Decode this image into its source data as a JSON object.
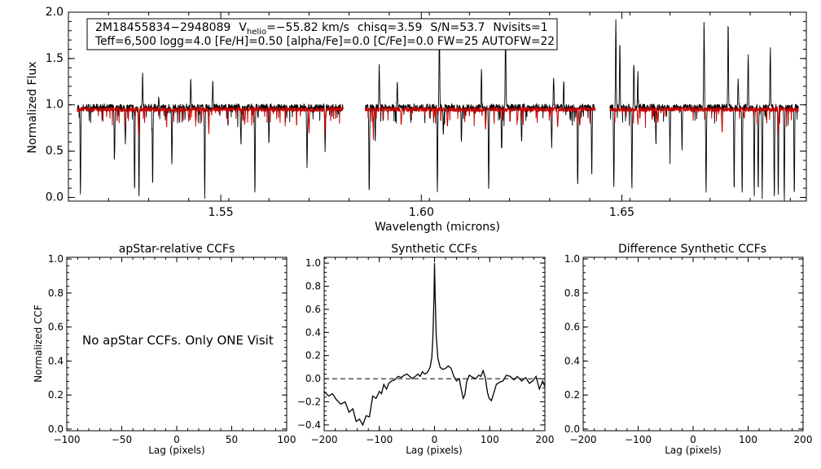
{
  "chart_data": [
    {
      "id": "spectrum",
      "type": "line",
      "title": "",
      "xlabel": "Wavelength (microns)",
      "ylabel": "Normalized Flux",
      "xlim": [
        1.512,
        1.696
      ],
      "ylim": [
        -0.04,
        2.0
      ],
      "xticks": [
        1.55,
        1.6,
        1.65
      ],
      "xtick_labels": [
        "1.55",
        "1.60",
        "1.65"
      ],
      "yticks": [
        0.0,
        0.5,
        1.0,
        1.5,
        2.0
      ],
      "ytick_labels": [
        "0.0",
        "0.5",
        "1.0",
        "1.5",
        "2.0"
      ],
      "chips": [
        [
          1.5142,
          1.5805
        ],
        [
          1.586,
          1.6433
        ],
        [
          1.647,
          1.694
        ]
      ],
      "series": [
        {
          "color": "#000000",
          "continuum": 0.97,
          "noise": 0.04,
          "seed": 7,
          "features": [
            [
              1.515,
              -0.97
            ],
            [
              1.5235,
              -0.55
            ],
            [
              1.5262,
              -0.4
            ],
            [
              1.5285,
              -0.92
            ],
            [
              1.5296,
              -0.96
            ],
            [
              1.5305,
              0.35
            ],
            [
              1.533,
              -0.85
            ],
            [
              1.5345,
              0.1
            ],
            [
              1.5378,
              -0.6
            ],
            [
              1.5425,
              0.3
            ],
            [
              1.546,
              -0.95
            ],
            [
              1.548,
              0.3
            ],
            [
              1.555,
              -0.35
            ],
            [
              1.5585,
              -0.96
            ],
            [
              1.562,
              -0.4
            ],
            [
              1.5715,
              -0.65
            ],
            [
              1.576,
              -0.45
            ],
            [
              1.587,
              -0.95
            ],
            [
              1.5885,
              -0.35
            ],
            [
              1.5895,
              0.45
            ],
            [
              1.594,
              0.3
            ],
            [
              1.604,
              -0.95
            ],
            [
              1.6045,
              0.95
            ],
            [
              1.6055,
              -0.3
            ],
            [
              1.61,
              -0.4
            ],
            [
              1.615,
              0.4
            ],
            [
              1.6168,
              -0.9
            ],
            [
              1.62,
              -0.45
            ],
            [
              1.621,
              0.95
            ],
            [
              1.625,
              -0.4
            ],
            [
              1.6325,
              -0.4
            ],
            [
              1.633,
              0.35
            ],
            [
              1.6355,
              0.3
            ],
            [
              1.639,
              -0.85
            ],
            [
              1.6425,
              -0.75
            ],
            [
              1.648,
              -0.9
            ],
            [
              1.6485,
              0.95
            ],
            [
              1.6495,
              0.7
            ],
            [
              1.6525,
              -0.9
            ],
            [
              1.653,
              0.5
            ],
            [
              1.654,
              0.4
            ],
            [
              1.6585,
              -0.4
            ],
            [
              1.662,
              -0.5
            ],
            [
              1.665,
              -0.45
            ],
            [
              1.6705,
              0.95
            ],
            [
              1.671,
              -0.92
            ],
            [
              1.6765,
              0.95
            ],
            [
              1.678,
              -0.9
            ],
            [
              1.679,
              0.3
            ],
            [
              1.68,
              -0.95
            ],
            [
              1.6815,
              0.6
            ],
            [
              1.683,
              -0.94
            ],
            [
              1.684,
              -0.9
            ],
            [
              1.685,
              -0.96
            ],
            [
              1.687,
              0.7
            ],
            [
              1.688,
              -0.95
            ],
            [
              1.689,
              -0.93
            ],
            [
              1.6905,
              -0.97
            ],
            [
              1.693,
              -0.96
            ]
          ]
        },
        {
          "color": "#cc0000",
          "continuum": 0.95,
          "noise": 0.025,
          "seed": 3,
          "features": [
            [
              1.5295,
              -0.3
            ],
            [
              1.542,
              -0.12
            ],
            [
              1.547,
              -0.25
            ],
            [
              1.556,
              -0.15
            ],
            [
              1.572,
              -0.25
            ],
            [
              1.576,
              -0.22
            ],
            [
              1.588,
              -0.2
            ],
            [
              1.595,
              -0.15
            ],
            [
              1.6065,
              -0.2
            ],
            [
              1.616,
              -0.2
            ],
            [
              1.624,
              -0.12
            ],
            [
              1.634,
              -0.2
            ],
            [
              1.6395,
              -0.18
            ],
            [
              1.654,
              -0.15
            ],
            [
              1.659,
              -0.14
            ],
            [
              1.675,
              -0.25
            ],
            [
              1.6805,
              -0.1
            ],
            [
              1.689,
              -0.2
            ]
          ]
        }
      ]
    },
    {
      "id": "apstar_ccf",
      "type": "line",
      "title": "apStar-relative CCFs",
      "xlabel": "Lag (pixels)",
      "ylabel": "Normalized CCF",
      "xlim": [
        -100,
        100
      ],
      "ylim": [
        -0.01,
        1.01
      ],
      "xticks": [
        -100,
        -50,
        0,
        50,
        100
      ],
      "xtick_labels": [
        "−100",
        "−50",
        "0",
        "50",
        "100"
      ],
      "yticks": [
        0.0,
        0.2,
        0.4,
        0.6,
        0.8,
        1.0
      ],
      "ytick_labels": [
        "0.0",
        "0.2",
        "0.4",
        "0.6",
        "0.8",
        "1.0"
      ],
      "annotation": "No apStar CCFs.  Only ONE Visit",
      "series": []
    },
    {
      "id": "synthetic_ccf",
      "type": "line",
      "title": "Synthetic CCFs",
      "xlabel": "Lag (pixels)",
      "ylabel": "",
      "xlim": [
        -200,
        200
      ],
      "ylim": [
        -0.45,
        1.05
      ],
      "xticks": [
        -200,
        -100,
        0,
        100,
        200
      ],
      "xtick_labels": [
        "−200",
        "−100",
        "0",
        "100",
        "200"
      ],
      "yticks": [
        -0.4,
        -0.2,
        0.0,
        0.2,
        0.4,
        0.6,
        0.8,
        1.0
      ],
      "ytick_labels": [
        "−0.4",
        "−0.2",
        "0.0",
        "0.2",
        "0.4",
        "0.6",
        "0.8",
        "1.0"
      ],
      "zero_line": 0.0,
      "series": [
        {
          "color": "#000000",
          "points": [
            [
              -200,
              -0.11
            ],
            [
              -192,
              -0.15
            ],
            [
              -185,
              -0.13
            ],
            [
              -178,
              -0.18
            ],
            [
              -170,
              -0.22
            ],
            [
              -162,
              -0.2
            ],
            [
              -155,
              -0.29
            ],
            [
              -148,
              -0.26
            ],
            [
              -142,
              -0.37
            ],
            [
              -136,
              -0.35
            ],
            [
              -130,
              -0.4
            ],
            [
              -124,
              -0.32
            ],
            [
              -118,
              -0.33
            ],
            [
              -112,
              -0.15
            ],
            [
              -106,
              -0.17
            ],
            [
              -100,
              -0.11
            ],
            [
              -96,
              -0.13
            ],
            [
              -92,
              -0.05
            ],
            [
              -87,
              -0.09
            ],
            [
              -83,
              -0.04
            ],
            [
              -78,
              -0.02
            ],
            [
              -72,
              -0.01
            ],
            [
              -66,
              0.02
            ],
            [
              -60,
              0.01
            ],
            [
              -55,
              0.03
            ],
            [
              -50,
              0.04
            ],
            [
              -45,
              0.02
            ],
            [
              -40,
              0.0
            ],
            [
              -35,
              0.02
            ],
            [
              -30,
              0.04
            ],
            [
              -26,
              0.02
            ],
            [
              -22,
              0.06
            ],
            [
              -18,
              0.04
            ],
            [
              -14,
              0.05
            ],
            [
              -11,
              0.07
            ],
            [
              -8,
              0.1
            ],
            [
              -5,
              0.18
            ],
            [
              -3,
              0.35
            ],
            [
              -1,
              0.7
            ],
            [
              0,
              1.0
            ],
            [
              1,
              0.75
            ],
            [
              3,
              0.38
            ],
            [
              6,
              0.18
            ],
            [
              10,
              0.1
            ],
            [
              15,
              0.08
            ],
            [
              20,
              0.09
            ],
            [
              25,
              0.11
            ],
            [
              30,
              0.09
            ],
            [
              35,
              0.02
            ],
            [
              40,
              -0.02
            ],
            [
              45,
              0.0
            ],
            [
              48,
              -0.08
            ],
            [
              52,
              -0.17
            ],
            [
              55,
              -0.14
            ],
            [
              58,
              -0.03
            ],
            [
              63,
              0.03
            ],
            [
              70,
              0.01
            ],
            [
              75,
              0.0
            ],
            [
              80,
              0.03
            ],
            [
              84,
              0.02
            ],
            [
              88,
              0.07
            ],
            [
              92,
              0.01
            ],
            [
              96,
              -0.12
            ],
            [
              99,
              -0.17
            ],
            [
              103,
              -0.19
            ],
            [
              107,
              -0.13
            ],
            [
              112,
              -0.05
            ],
            [
              118,
              -0.03
            ],
            [
              124,
              -0.02
            ],
            [
              130,
              0.03
            ],
            [
              137,
              0.02
            ],
            [
              144,
              -0.01
            ],
            [
              150,
              0.02
            ],
            [
              158,
              -0.02
            ],
            [
              165,
              0.01
            ],
            [
              172,
              -0.04
            ],
            [
              178,
              -0.02
            ],
            [
              184,
              0.02
            ],
            [
              190,
              -0.09
            ],
            [
              196,
              -0.02
            ],
            [
              200,
              -0.07
            ]
          ]
        }
      ]
    },
    {
      "id": "difference_ccf",
      "type": "line",
      "title": "Difference Synthetic CCFs",
      "xlabel": "Lag (pixels)",
      "ylabel": "",
      "xlim": [
        -200,
        200
      ],
      "ylim": [
        -0.01,
        1.01
      ],
      "xticks": [
        -200,
        -100,
        0,
        100,
        200
      ],
      "xtick_labels": [
        "−200",
        "−100",
        "0",
        "100",
        "200"
      ],
      "yticks": [
        0.0,
        0.2,
        0.4,
        0.6,
        0.8,
        1.0
      ],
      "ytick_labels": [
        "0.0",
        "0.2",
        "0.4",
        "0.6",
        "0.8",
        "1.0"
      ],
      "series": []
    }
  ],
  "info": {
    "line1": {
      "star": "2M18455834−2948089",
      "v_prefix": "V",
      "v_sub": "helio",
      "v_value": "=−55.82 km/s",
      "chisq": "chisq=3.59",
      "snr": "S/N=53.7",
      "nvisits": "Nvisits=1"
    },
    "line2": "Teff=6,500 logg=4.0 [Fe/H]=0.50 [alpha/Fe]=0.0 [C/Fe]=0.0 FW=25 AUTOFW=22"
  }
}
